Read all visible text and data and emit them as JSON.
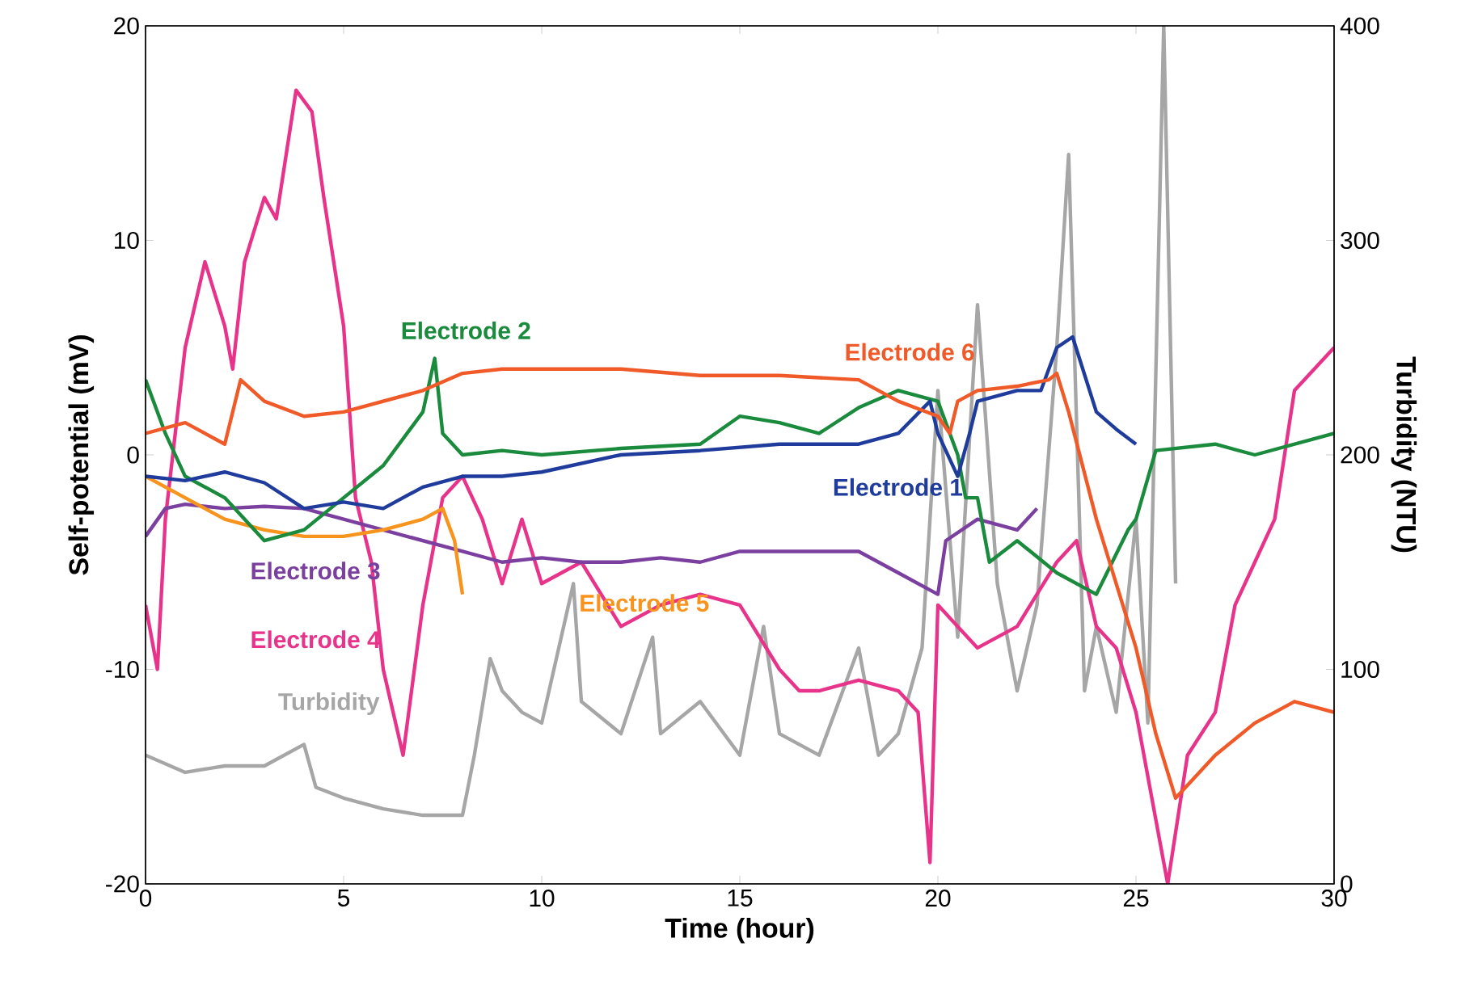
{
  "chart_data": {
    "type": "line",
    "xlabel": "Time (hour)",
    "ylabel": "Self-potential (mV)",
    "y2label": "Turbidity (NTU)",
    "xlim": [
      0,
      30
    ],
    "xticks": [
      0,
      5,
      10,
      15,
      20,
      25,
      30
    ],
    "ylim": [
      -20,
      20
    ],
    "yticks": [
      -20,
      -10,
      0,
      10,
      20
    ],
    "y2lim": [
      0,
      400
    ],
    "y2ticks": [
      0,
      100,
      200,
      300,
      400
    ],
    "series": [
      {
        "name": "Turbidity",
        "color": "#a6a6a6",
        "axis": "y2",
        "x": [
          0,
          1,
          2,
          3,
          4,
          4.3,
          5,
          6,
          7,
          8,
          8.3,
          8.7,
          9,
          9.5,
          10,
          10.8,
          11,
          12,
          12.8,
          13,
          14,
          15,
          15.6,
          16,
          17,
          18,
          18.5,
          19,
          19.6,
          20,
          20.5,
          21,
          21.5,
          22,
          22.5,
          23,
          23.3,
          23.7,
          24,
          24.5,
          25,
          25.3,
          25.7,
          26
        ],
        "values": [
          60,
          52,
          55,
          55,
          65,
          45,
          40,
          35,
          32,
          32,
          60,
          105,
          90,
          80,
          75,
          140,
          85,
          70,
          115,
          70,
          85,
          60,
          120,
          70,
          60,
          110,
          60,
          70,
          110,
          230,
          115,
          270,
          140,
          90,
          130,
          250,
          340,
          90,
          120,
          80,
          170,
          75,
          400,
          140
        ]
      },
      {
        "name": "Electrode 4",
        "color": "#e8338a",
        "x": [
          0,
          0.3,
          0.5,
          1,
          1.5,
          2,
          2.2,
          2.5,
          3,
          3.3,
          3.8,
          4.2,
          4.5,
          5,
          5.3,
          5.7,
          6,
          6.5,
          7,
          7.5,
          8,
          8.5,
          9,
          9.5,
          10,
          11,
          12,
          13,
          14,
          15,
          16,
          16.5,
          17,
          18,
          19,
          19.5,
          19.8,
          20,
          20.5,
          21,
          22,
          23,
          23.5,
          24,
          24.5,
          25,
          25.8,
          26.3,
          27,
          27.5,
          28,
          28.5,
          29,
          30
        ],
        "values": [
          -7,
          -10,
          -3,
          5,
          9,
          6,
          4,
          9,
          12,
          11,
          17,
          16,
          12,
          6,
          -2,
          -5,
          -10,
          -14,
          -7,
          -2,
          -1,
          -3,
          -6,
          -3,
          -6,
          -5,
          -8,
          -7,
          -6.5,
          -7,
          -10,
          -11,
          -11,
          -10.5,
          -11,
          -12,
          -19,
          -7,
          -8,
          -9,
          -8,
          -5,
          -4,
          -8,
          -9,
          -12,
          -20,
          -14,
          -12,
          -7,
          -5,
          -3,
          3,
          5
        ]
      },
      {
        "name": "Electrode 3",
        "color": "#7b3fa0",
        "x": [
          0,
          0.5,
          1,
          2,
          3,
          4,
          5,
          6,
          7,
          8,
          9,
          10,
          11,
          12,
          13,
          14,
          15,
          16,
          17,
          18,
          19,
          20,
          20.2,
          21,
          22,
          22.5
        ],
        "values": [
          -3.8,
          -2.5,
          -2.3,
          -2.5,
          -2.4,
          -2.5,
          -3,
          -3.5,
          -4,
          -4.5,
          -5,
          -4.8,
          -5,
          -5,
          -4.8,
          -5,
          -4.5,
          -4.5,
          -4.5,
          -4.5,
          -5.5,
          -6.5,
          -4,
          -3,
          -3.5,
          -2.5
        ]
      },
      {
        "name": "Electrode 5",
        "color": "#f7941d",
        "x": [
          0,
          1,
          2,
          3,
          4,
          5,
          6,
          7,
          7.5,
          7.8,
          8
        ],
        "values": [
          -1,
          -2,
          -3,
          -3.5,
          -3.8,
          -3.8,
          -3.5,
          -3,
          -2.5,
          -4,
          -6.5
        ]
      },
      {
        "name": "Electrode 2",
        "color": "#1a8a3c",
        "x": [
          0,
          0.5,
          1,
          2,
          3,
          4,
          5,
          6,
          7,
          7.3,
          7.5,
          8,
          9,
          10,
          12,
          14,
          15,
          16,
          17,
          18,
          19,
          20,
          20.5,
          20.7,
          21,
          21.3,
          22,
          23,
          24,
          24.8,
          25,
          25.5,
          27,
          28,
          30
        ],
        "values": [
          3.5,
          1,
          -1,
          -2,
          -4,
          -3.5,
          -2,
          -0.5,
          2,
          4.5,
          1,
          0,
          0.2,
          0,
          0.3,
          0.5,
          1.8,
          1.5,
          1,
          2.2,
          3,
          2.5,
          0,
          -2,
          -2,
          -5,
          -4,
          -5.5,
          -6.5,
          -3.5,
          -3,
          0.2,
          0.5,
          0,
          1
        ]
      },
      {
        "name": "Electrode 1",
        "color": "#1f3c9c",
        "x": [
          0,
          1,
          2,
          3,
          4,
          5,
          6,
          6.5,
          7,
          8,
          9,
          10,
          12,
          14,
          16,
          18,
          19,
          19.8,
          20,
          20.5,
          20.8,
          21,
          22,
          22.6,
          23,
          23.4,
          24,
          24.5,
          25
        ],
        "values": [
          -1,
          -1.2,
          -0.8,
          -1.3,
          -2.5,
          -2.2,
          -2.5,
          -2,
          -1.5,
          -1,
          -1,
          -0.8,
          0,
          0.2,
          0.5,
          0.5,
          1,
          2.5,
          1,
          -1,
          1,
          2.5,
          3,
          3,
          5,
          5.5,
          2,
          1.2,
          0.5
        ]
      },
      {
        "name": "Electrode 6",
        "color": "#f05a28",
        "x": [
          0,
          1,
          2,
          2.4,
          3,
          4,
          5,
          6,
          7,
          8,
          9,
          10,
          12,
          14,
          16,
          18,
          19,
          20,
          20.3,
          20.5,
          21,
          22,
          22.8,
          23,
          23.3,
          24,
          25,
          25.5,
          26,
          26.5,
          27,
          28,
          29,
          30
        ],
        "values": [
          1,
          1.5,
          0.5,
          3.5,
          2.5,
          1.8,
          2,
          2.5,
          3,
          3.8,
          4,
          4,
          4,
          3.7,
          3.7,
          3.5,
          2.5,
          1.8,
          1,
          2.5,
          3,
          3.2,
          3.5,
          3.8,
          2,
          -3,
          -9,
          -13,
          -16,
          -15,
          -14,
          -12.5,
          -11.5,
          -12
        ]
      }
    ]
  }
}
